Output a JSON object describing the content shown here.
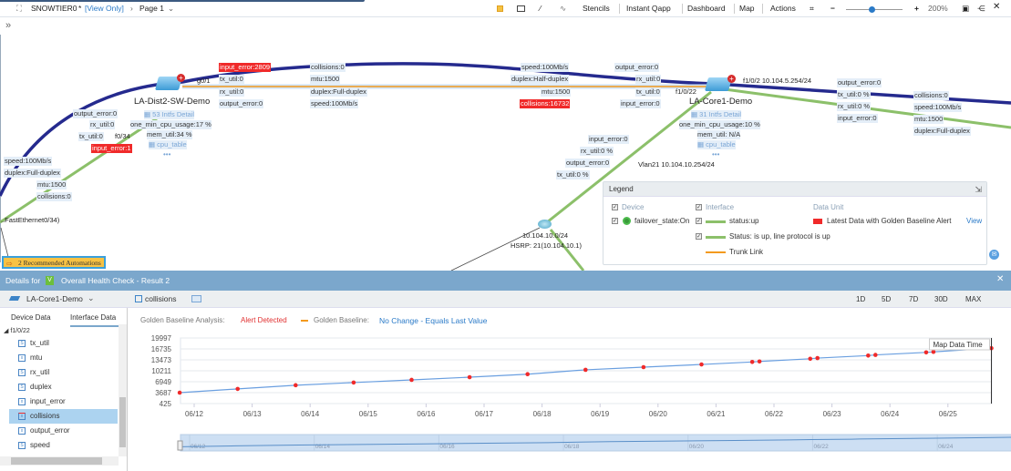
{
  "topbar": {
    "title": "SNOWTIER0",
    "modified_mark": "*",
    "view_mode": "[View Only]",
    "page": "Page 1",
    "stencils": "Stencils",
    "instant_qapp": "Instant Qapp",
    "dashboard": "Dashboard",
    "map": "Map",
    "actions": "Actions",
    "zoom_level": "200%",
    "zoom_slider_fraction": 0.45
  },
  "map": {
    "devices": [
      {
        "name": "LA-Dist2-SW-Demo",
        "intfs": "53 Intfs Detail",
        "cpu": "one_min_cpu_usage:17 %",
        "mem": "mem_util:34 %",
        "table": "cpu_table",
        "more": "•••"
      },
      {
        "name": "LA-Core1-Demo",
        "intfs": "31 Intfs Detail",
        "cpu": "one_min_cpu_usage:10 %",
        "mem": "mem_util: N/A",
        "table": "cpu_table",
        "more": "•••"
      }
    ],
    "subnet": {
      "net": "10.104.10.0/24",
      "hsrp": "HSRP: 21(10.104.10.1)"
    },
    "left_link": [
      "output_error:0",
      "rx_util:0",
      "tx_util:0",
      "speed:100Mb/s",
      "duplex:Full-duplex",
      "mtu:1500",
      "collisions:0"
    ],
    "left_link_red": "input_error:1",
    "left_port": "f0/34",
    "fast_eth": "..FastEthernet0/34)",
    "mid_a": [
      "rx_util:0",
      "output_error:0",
      "collisions:0",
      "mtu:1500",
      "duplex:Full-duplex",
      "speed:100Mb/s",
      "g0/1"
    ],
    "mid_a_red": "input_error:2809",
    "mid_b": [
      "speed:100Mb/s",
      "duplex:Half-duplex",
      "mtu:1500"
    ],
    "mid_b_red": "collisions:16732",
    "mid_c": [
      "output_error:0",
      "rx_util:0",
      "tx_util:0",
      "input_error:0"
    ],
    "core_port": "f1/0/22",
    "right_port": "f1/0/2 10.104.5.254/24",
    "right_a": [
      "output_error:0",
      "tx_util:0 %",
      "rx_util:0 %",
      "input_error:0"
    ],
    "right_b": [
      "collisions:0",
      "speed:100Mb/s",
      "mtu:1500",
      "duplex:Full-duplex"
    ],
    "down_link": [
      "input_error:0",
      "rx_util:0 %",
      "output_error:0",
      "tx_util:0 %"
    ],
    "vlan": "Vlan21 10.104.10.254/24"
  },
  "legend": {
    "title": "Legend",
    "device": "Device",
    "interface": "Interface",
    "data_unit": "Data Unit",
    "failover": "failover_state:On",
    "status_up": "status:up",
    "status_line": "Status: is up, line protocol is up",
    "trunk": "Trunk Link",
    "alert": "Latest Data with Golden Baseline Alert",
    "view": "View",
    "colors": {
      "status": "#8cc06a",
      "trunk": "#f39a1e",
      "alert": "#f02a2a"
    }
  },
  "automations": "2 Recommended Automations",
  "details": {
    "prefix": "Details for",
    "title": "Overall Health Check - Result 2",
    "device": "LA-Core1-Demo",
    "metric": "collisions",
    "ranges": [
      "1D",
      "5D",
      "7D",
      "30D",
      "MAX"
    ],
    "tabs": [
      "Device Data",
      "Interface Data"
    ],
    "tree_root": "f1/0/22",
    "tree": [
      "tx_util",
      "mtu",
      "rx_util",
      "duplex",
      "input_error",
      "collisions",
      "output_error",
      "speed"
    ],
    "analysis_label": "Golden Baseline Analysis:",
    "analysis_value": "Alert Detected",
    "baseline_label": "Golden Baseline:",
    "baseline_value": "No Change - Equals Last Value"
  },
  "chart_data": {
    "type": "line",
    "ylim": [
      425,
      19997
    ],
    "yticks": [
      "425",
      "3687",
      "6949",
      "10211",
      "13473",
      "16735",
      "19997"
    ],
    "xticks": [
      "06/12",
      "06/13",
      "06/14",
      "06/15",
      "06/16",
      "06/17",
      "06/18",
      "06/19",
      "06/20",
      "06/21",
      "06/22",
      "06/23",
      "06/24",
      "06/25"
    ],
    "navigator_ticks": [
      "06/12",
      "06/14",
      "06/16",
      "06/18",
      "06/20",
      "06/22",
      "06/24"
    ],
    "x": [
      "06/11 18:00",
      "06/12 18:00",
      "06/13 18:00",
      "06/14 18:00",
      "06/15 18:00",
      "06/16 18:00",
      "06/17 18:00",
      "06/18 18:00",
      "06/19 18:00",
      "06/20 18:00",
      "06/21 15:00",
      "06/21 18:00",
      "06/22 15:00",
      "06/22 18:00",
      "06/23 15:00",
      "06/23 18:00",
      "06/24 15:00",
      "06/24 18:00",
      "06/25 18:00"
    ],
    "values": [
      3687,
      4800,
      5900,
      6700,
      7500,
      8300,
      9200,
      10500,
      11300,
      12100,
      12850,
      13000,
      13800,
      14000,
      14750,
      14950,
      15700,
      15850,
      16950
    ],
    "marker": "Map Data Time",
    "grid": true,
    "line_color": "#6a9fe0",
    "point_color": "#f02a2a"
  }
}
